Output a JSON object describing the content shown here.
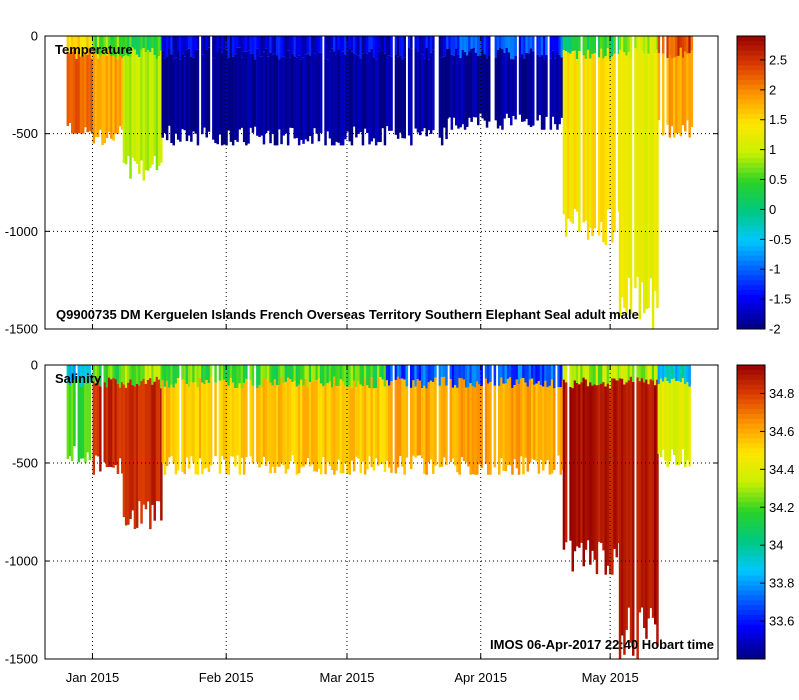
{
  "chart_data": [
    {
      "type": "heatmap",
      "title": "Temperature",
      "annotation": "Q9900735 DM Kerguelen Islands French Overseas Territory Southern Elephant Seal adult male",
      "xlabel": "",
      "ylabel": "",
      "x_tick_labels": [
        "Jan 2015",
        "Feb 2015",
        "Mar 2015",
        "Apr 2015",
        "May 2015"
      ],
      "x_ticks": [
        "2015-01-01",
        "2015-02-01",
        "2015-03-01",
        "2015-04-01",
        "2015-05-01"
      ],
      "xlim": [
        "2014-12-21",
        "2015-05-26"
      ],
      "y_ticks": [
        0,
        -500,
        -1000,
        -1500
      ],
      "ylim": [
        -1500,
        0
      ],
      "grid": true,
      "colorbar": {
        "ticks": [
          2.5,
          2,
          1.5,
          1,
          0.5,
          0,
          -0.5,
          -1,
          -1.5,
          -2
        ],
        "range": [
          -2,
          2.9
        ]
      },
      "profiles_summary": [
        {
          "period": "late Dec 2014",
          "surface_value": 1.5,
          "deep_value": 2.2,
          "max_depth": -500
        },
        {
          "period": "early Jan 2015",
          "surface_value": 0.6,
          "deep_value": 1.8,
          "max_depth": -560
        },
        {
          "period": "mid Jan 2015",
          "surface_value": 0.4,
          "deep_value": 0.9,
          "max_depth": -740
        },
        {
          "period": "late Jan 2015 - late Mar 2015",
          "surface_value": -1.6,
          "deep_value": -1.9,
          "max_depth": -560
        },
        {
          "period": "early Apr 2015",
          "surface_value": -1.2,
          "deep_value": -1.9,
          "max_depth": -480
        },
        {
          "period": "late Apr 2015",
          "surface_value": 0.3,
          "deep_value": 1.4,
          "max_depth": -1070
        },
        {
          "period": "early May 2015",
          "surface_value": 0.9,
          "deep_value": 1.2,
          "max_depth": -1500
        },
        {
          "period": "mid May 2015",
          "surface_value": 2.4,
          "deep_value": 1.8,
          "max_depth": -520
        }
      ]
    },
    {
      "type": "heatmap",
      "title": "Salinity",
      "annotation": "IMOS 06-Apr-2017 22:40 Hobart time",
      "xlabel": "",
      "ylabel": "",
      "x_tick_labels": [
        "Jan 2015",
        "Feb 2015",
        "Mar 2015",
        "Apr 2015",
        "May 2015"
      ],
      "x_ticks": [
        "2015-01-01",
        "2015-02-01",
        "2015-03-01",
        "2015-04-01",
        "2015-05-01"
      ],
      "xlim": [
        "2014-12-21",
        "2015-05-26"
      ],
      "y_ticks": [
        0,
        -500,
        -1000,
        -1500
      ],
      "ylim": [
        -1500,
        0
      ],
      "grid": true,
      "colorbar": {
        "ticks": [
          34.8,
          34.6,
          34.4,
          34.2,
          34,
          33.8,
          33.6
        ],
        "range": [
          33.4,
          34.95
        ]
      },
      "profiles_summary": [
        {
          "period": "late Dec 2014",
          "surface_value": 33.9,
          "deep_value": 34.2,
          "max_depth": -500
        },
        {
          "period": "early Jan 2015",
          "surface_value": 34.2,
          "deep_value": 34.85,
          "max_depth": -560
        },
        {
          "period": "mid Jan 2015",
          "surface_value": 34.3,
          "deep_value": 34.85,
          "max_depth": -840
        },
        {
          "period": "late Jan 2015 - early Mar 2015",
          "surface_value": 34.2,
          "deep_value": 34.55,
          "max_depth": -560
        },
        {
          "period": "mid Mar 2015 - early Apr 2015",
          "surface_value": 33.7,
          "deep_value": 34.6,
          "max_depth": -560
        },
        {
          "period": "late Apr 2015",
          "surface_value": 34.3,
          "deep_value": 34.9,
          "max_depth": -1070
        },
        {
          "period": "early May 2015",
          "surface_value": 34.3,
          "deep_value": 34.9,
          "max_depth": -1500
        },
        {
          "period": "mid May 2015",
          "surface_value": 33.9,
          "deep_value": 34.4,
          "max_depth": -520
        }
      ]
    }
  ]
}
